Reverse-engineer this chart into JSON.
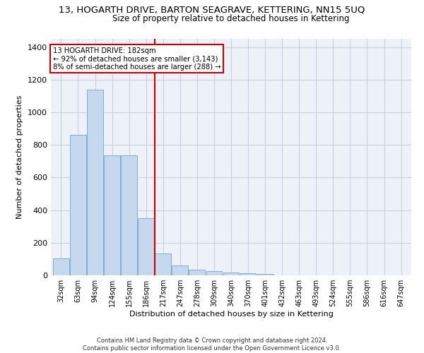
{
  "title": "13, HOGARTH DRIVE, BARTON SEAGRAVE, KETTERING, NN15 5UQ",
  "subtitle": "Size of property relative to detached houses in Kettering",
  "xlabel": "Distribution of detached houses by size in Kettering",
  "ylabel": "Number of detached properties",
  "categories": [
    "32sqm",
    "63sqm",
    "94sqm",
    "124sqm",
    "155sqm",
    "186sqm",
    "217sqm",
    "247sqm",
    "278sqm",
    "309sqm",
    "340sqm",
    "370sqm",
    "401sqm",
    "432sqm",
    "463sqm",
    "493sqm",
    "524sqm",
    "555sqm",
    "586sqm",
    "616sqm",
    "647sqm"
  ],
  "values": [
    105,
    860,
    1140,
    735,
    735,
    350,
    135,
    62,
    35,
    25,
    18,
    15,
    8,
    0,
    0,
    0,
    0,
    0,
    0,
    0,
    0
  ],
  "bar_color": "#c5d8ee",
  "bar_edge_color": "#7aafd4",
  "vline_x": 5.5,
  "vline_color": "#cc0000",
  "annotation_text": "13 HOGARTH DRIVE: 182sqm\n← 92% of detached houses are smaller (3,143)\n8% of semi-detached houses are larger (288) →",
  "annotation_box_color": "#cc0000",
  "ylim": [
    0,
    1450
  ],
  "yticks": [
    0,
    200,
    400,
    600,
    800,
    1000,
    1200,
    1400
  ],
  "footer": "Contains HM Land Registry data © Crown copyright and database right 2024.\nContains public sector information licensed under the Open Government Licence v3.0.",
  "bg_color": "#eef2f8",
  "grid_color": "#c8d0e0",
  "title_fontsize": 9.5,
  "subtitle_fontsize": 8.5,
  "tick_fontsize": 7,
  "label_fontsize": 8,
  "footer_fontsize": 6
}
